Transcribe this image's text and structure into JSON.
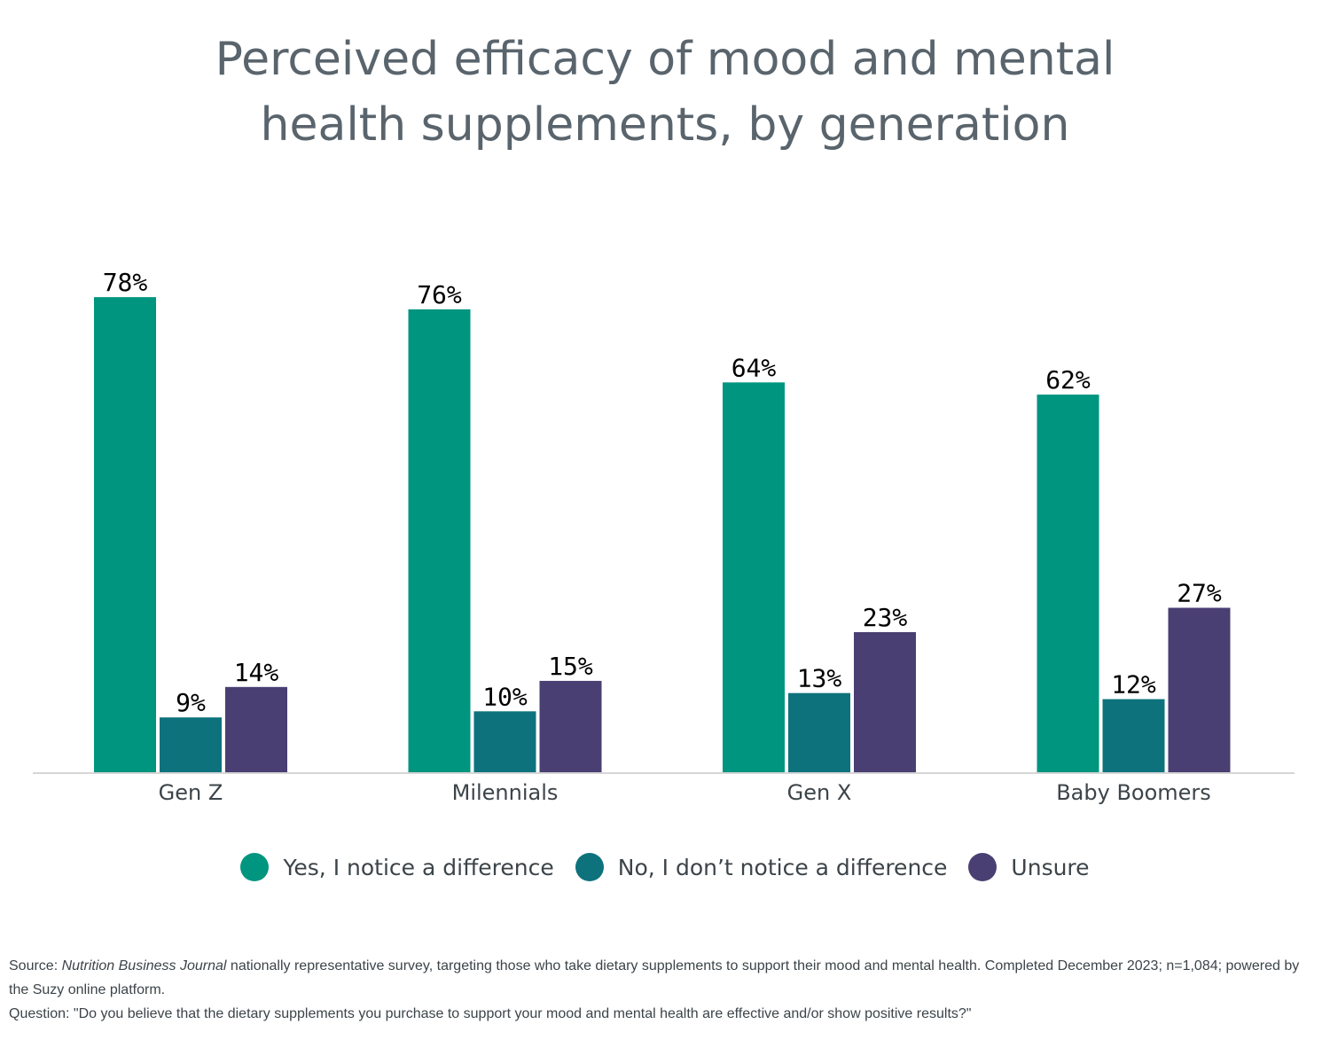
{
  "title_lines": [
    "Perceived efficacy of mood and mental",
    "health supplements, by generation"
  ],
  "colors": {
    "yes": "#00957f",
    "no": "#0e727d",
    "unsure": "#4a3f72",
    "title": "#59646c",
    "text": "#3c4449",
    "axis": "#d6d6d6"
  },
  "chart_data": {
    "type": "bar",
    "title": "Perceived efficacy of mood and mental health supplements, by generation",
    "categories": [
      "Gen Z",
      "Milennials",
      "Gen X",
      "Baby Boomers"
    ],
    "series": [
      {
        "name": "Yes, I notice a difference",
        "values": [
          78,
          76,
          64,
          62
        ],
        "labels": [
          "78%",
          "76%",
          "64%",
          "62%"
        ]
      },
      {
        "name": "No, I don’t notice a difference",
        "values": [
          9,
          10,
          13,
          12
        ],
        "labels": [
          "9%",
          "10%",
          "13%",
          "12%"
        ]
      },
      {
        "name": "Unsure",
        "values": [
          14,
          15,
          23,
          27
        ],
        "labels": [
          "14%",
          "15%",
          "23%",
          "27%"
        ]
      }
    ],
    "ylim": [
      0,
      100
    ],
    "grid": false,
    "legend": "bottom"
  },
  "source": {
    "prefix": "Source: ",
    "publication": "Nutrition Business Journal",
    "text": " nationally representative survey, targeting those who take dietary supplements to support their mood and mental health. Completed December 2023; n=1,084; powered by the Suzy online platform.",
    "question": "Question: \"Do you believe that the dietary supplements you purchase to support your mood and mental health are effective and/or show positive results?\""
  }
}
